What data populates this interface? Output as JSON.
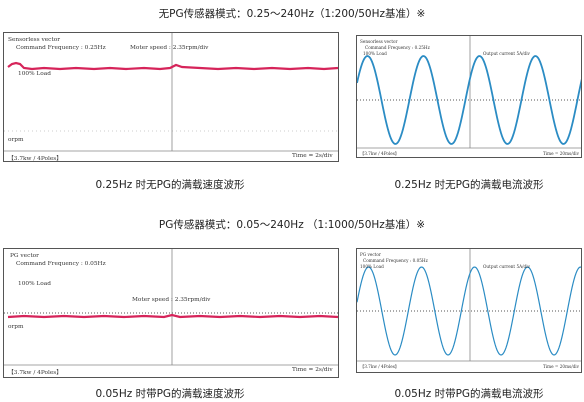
{
  "headings": {
    "sensorless": "无PG传感器模式：0.25～240Hz（1:200/50Hz基准）※",
    "pg": "PG传感器模式：0.05～240Hz （1:1000/50Hz基准）※"
  },
  "captions": {
    "speed_025": "0.25Hz 时无PG的满载速度波形",
    "current_025": "0.25Hz 时无PG的满载电流波形",
    "speed_005": "0.05Hz 时带PG的满载速度波形",
    "current_005": "0.05Hz 时带PG的满载电流波形"
  },
  "scope1": {
    "mode": "Sensorless vector",
    "freq": "Command Frequency : 0.25Hz",
    "speed": "Moter speed : 2.35rpm/div",
    "load": "100% Load",
    "zero": "orpm",
    "motor": "【3.7kw / 4Poles】",
    "time": "Time = 2s/div"
  },
  "scope2": {
    "mode": "Sensorless vector",
    "freq": "Command Frequency : 0.25Hz",
    "load": "100% Load",
    "current": "Output current 5A/div",
    "motor": "【3.7kw / 4Poles】",
    "time": "Time = 20ms/div"
  },
  "scope3": {
    "mode": "PG vector",
    "freq": "Command Frequency : 0.05Hz",
    "load": "100% Load",
    "speed": "Moter speed : 2.35rpm/div",
    "zero": "orpm",
    "motor": "【3.7kw / 4Poles】",
    "time": "Time = 2s/div"
  },
  "scope4": {
    "mode": "PG vector",
    "freq": "Command Frequency : 0.05Hz",
    "load": "100% Load",
    "current": "Output current 5A/div",
    "motor": "【3.7kw / 4Poles】",
    "time": "Time = 20ms/div"
  },
  "colors": {
    "speed_trace": "#d6245a",
    "current_trace": "#2b8cc4",
    "grid": "#888888",
    "frame": "#555555"
  }
}
